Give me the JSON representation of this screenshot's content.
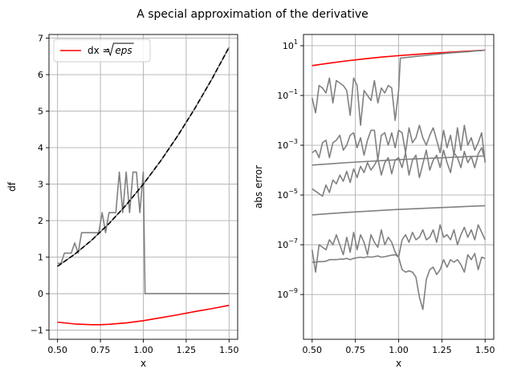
{
  "suptitle": "A special approximation of the derivative",
  "colors": {
    "red": "#ff0000",
    "gray": "#808080",
    "black": "#000000",
    "grid": "#b0b0b0"
  },
  "chart_data": [
    {
      "type": "line",
      "xlabel": "x",
      "ylabel": "df",
      "xlim": [
        0.45,
        1.55
      ],
      "ylim": [
        -1.25,
        7.1
      ],
      "xticks": [
        0.5,
        0.75,
        1.0,
        1.25,
        1.5
      ],
      "xtick_labels": [
        "0.50",
        "0.75",
        "1.00",
        "1.25",
        "1.50"
      ],
      "yticks": [
        -1,
        0,
        1,
        2,
        3,
        4,
        5,
        6,
        7
      ],
      "ytick_labels": [
        "−1",
        "0",
        "1",
        "2",
        "3",
        "4",
        "5",
        "6",
        "7"
      ],
      "grid": true,
      "legend": {
        "position": "upper-left",
        "label_prefix": "dx = ",
        "label_math": "eps"
      },
      "series": [
        {
          "name": "dx = √eps",
          "color": "#ff0000",
          "x": [
            0.5,
            0.6,
            0.7,
            0.75,
            0.8,
            0.9,
            1.0,
            1.1,
            1.2,
            1.3,
            1.4,
            1.5
          ],
          "y": [
            -0.78,
            -0.83,
            -0.85,
            -0.85,
            -0.84,
            -0.8,
            -0.74,
            -0.66,
            -0.58,
            -0.49,
            -0.41,
            -0.32
          ]
        },
        {
          "color": "#808080",
          "x": [
            0.5,
            0.52,
            0.54,
            0.56,
            0.58,
            0.6,
            0.62,
            0.64,
            0.66,
            0.68,
            0.7,
            0.72,
            0.74,
            0.76,
            0.78,
            0.8,
            0.82,
            0.84,
            0.86,
            0.88,
            0.9,
            0.92,
            0.94,
            0.96,
            0.98,
            1.0,
            1.01,
            1.1,
            1.2,
            1.3,
            1.4,
            1.5
          ],
          "y": [
            0.83,
            0.83,
            1.11,
            1.11,
            1.11,
            1.39,
            1.11,
            1.67,
            1.67,
            1.67,
            1.67,
            1.67,
            1.67,
            2.22,
            1.67,
            2.22,
            2.22,
            2.22,
            3.33,
            2.22,
            3.33,
            2.22,
            3.33,
            3.33,
            2.22,
            3.33,
            0.0,
            0.0,
            0.0,
            0.0,
            0.0,
            0.0
          ]
        },
        {
          "color": "#808080",
          "x": [
            0.5,
            0.6,
            0.7,
            0.8,
            0.9,
            1.0,
            1.1,
            1.2,
            1.3,
            1.4,
            1.5
          ],
          "y": [
            0.75,
            1.08,
            1.47,
            1.92,
            2.43,
            3.0,
            3.63,
            4.32,
            5.07,
            5.88,
            6.75
          ]
        },
        {
          "color": "#000000",
          "dashed": true,
          "x": [
            0.5,
            0.6,
            0.7,
            0.8,
            0.9,
            1.0,
            1.1,
            1.2,
            1.3,
            1.4,
            1.5
          ],
          "y": [
            0.75,
            1.08,
            1.47,
            1.92,
            2.43,
            3.0,
            3.63,
            4.32,
            5.07,
            5.88,
            6.75
          ]
        }
      ]
    },
    {
      "type": "line",
      "xlabel": "x",
      "ylabel": "abs error",
      "yscale": "log",
      "xlim": [
        0.45,
        1.55
      ],
      "ylim_log10": [
        -10.8,
        1.45
      ],
      "xticks": [
        0.5,
        0.75,
        1.0,
        1.25,
        1.5
      ],
      "xtick_labels": [
        "0.50",
        "0.75",
        "1.00",
        "1.25",
        "1.50"
      ],
      "yticks_log10": [
        1,
        -1,
        -3,
        -5,
        -7,
        -9
      ],
      "ytick_labels": [
        {
          "base": "10",
          "exp": "1"
        },
        {
          "base": "10",
          "exp": "−1"
        },
        {
          "base": "10",
          "exp": "−3"
        },
        {
          "base": "10",
          "exp": "−5"
        },
        {
          "base": "10",
          "exp": "−7"
        },
        {
          "base": "10",
          "exp": "−9"
        }
      ],
      "grid": true,
      "series": [
        {
          "color": "#ff0000",
          "x": [
            0.5,
            0.6,
            0.7,
            0.8,
            0.9,
            1.0,
            1.1,
            1.2,
            1.3,
            1.4,
            1.5
          ],
          "log10y": [
            0.2,
            0.3,
            0.39,
            0.47,
            0.54,
            0.6,
            0.65,
            0.7,
            0.74,
            0.78,
            0.82
          ]
        },
        {
          "color": "#808080",
          "x": [
            0.5,
            0.52,
            0.54,
            0.56,
            0.58,
            0.6,
            0.62,
            0.64,
            0.66,
            0.68,
            0.7,
            0.72,
            0.74,
            0.76,
            0.78,
            0.8,
            0.82,
            0.84,
            0.86,
            0.88,
            0.9,
            0.92,
            0.94,
            0.96,
            0.98,
            1.0,
            1.01,
            1.1,
            1.2,
            1.3,
            1.4,
            1.5
          ],
          "log10y": [
            -1.1,
            -1.7,
            -0.6,
            -0.7,
            -0.9,
            -0.3,
            -1.3,
            -0.4,
            -0.5,
            -0.6,
            -0.8,
            -1.8,
            -0.3,
            -0.6,
            -2.2,
            -0.8,
            -1.0,
            -1.2,
            -0.4,
            -1.3,
            -0.7,
            -0.9,
            -0.6,
            -0.7,
            -2.0,
            -0.8,
            0.5,
            0.57,
            0.64,
            0.71,
            0.76,
            0.82
          ]
        },
        {
          "color": "#808080",
          "x": [
            0.5,
            0.52,
            0.54,
            0.56,
            0.58,
            0.6,
            0.62,
            0.64,
            0.66,
            0.68,
            0.7,
            0.72,
            0.74,
            0.76,
            0.78,
            0.8,
            0.82,
            0.84,
            0.86,
            0.88,
            0.9,
            0.92,
            0.94,
            0.96,
            0.98,
            1.0,
            1.02,
            1.04,
            1.06,
            1.08,
            1.1,
            1.12,
            1.14,
            1.16,
            1.18,
            1.2,
            1.22,
            1.24,
            1.26,
            1.28,
            1.3,
            1.32,
            1.34,
            1.36,
            1.38,
            1.4,
            1.42,
            1.44,
            1.46,
            1.48,
            1.5
          ],
          "log10y": [
            -3.3,
            -3.2,
            -3.5,
            -2.9,
            -2.8,
            -3.5,
            -2.9,
            -2.8,
            -2.6,
            -3.2,
            -3.0,
            -2.6,
            -2.5,
            -3.1,
            -2.7,
            -3.4,
            -2.8,
            -2.4,
            -2.4,
            -3.6,
            -2.6,
            -2.5,
            -3.0,
            -2.5,
            -3.1,
            -2.4,
            -2.5,
            -3.3,
            -2.3,
            -2.9,
            -2.7,
            -2.2,
            -2.7,
            -3.0,
            -2.6,
            -2.3,
            -2.8,
            -3.3,
            -2.4,
            -3.1,
            -2.6,
            -3.4,
            -2.3,
            -3.2,
            -2.2,
            -3.0,
            -2.7,
            -3.2,
            -2.9,
            -2.5,
            -3.7
          ]
        },
        {
          "color": "#808080",
          "x": [
            0.5,
            0.6,
            0.7,
            0.8,
            0.9,
            1.0,
            1.1,
            1.2,
            1.3,
            1.4,
            1.5
          ],
          "log10y": [
            -3.8,
            -3.75,
            -3.7,
            -3.66,
            -3.62,
            -3.58,
            -3.55,
            -3.52,
            -3.49,
            -3.46,
            -3.43
          ]
        },
        {
          "color": "#808080",
          "x": [
            0.5,
            0.52,
            0.54,
            0.56,
            0.58,
            0.6,
            0.62,
            0.64,
            0.66,
            0.68,
            0.7,
            0.72,
            0.74,
            0.76,
            0.78,
            0.8,
            0.82,
            0.84,
            0.86,
            0.88,
            0.9,
            0.92,
            0.94,
            0.96,
            0.98,
            1.0,
            1.02,
            1.04,
            1.06,
            1.08,
            1.1,
            1.12,
            1.14,
            1.16,
            1.18,
            1.2,
            1.22,
            1.24,
            1.26,
            1.28,
            1.3,
            1.32,
            1.34,
            1.36,
            1.38,
            1.4,
            1.42,
            1.44,
            1.46,
            1.48,
            1.5
          ],
          "log10y": [
            -4.75,
            -4.85,
            -4.95,
            -5.05,
            -4.6,
            -4.9,
            -4.4,
            -4.55,
            -4.2,
            -4.45,
            -4.05,
            -4.5,
            -3.95,
            -4.3,
            -3.85,
            -4.1,
            -3.7,
            -4.0,
            -3.8,
            -3.55,
            -4.2,
            -3.7,
            -3.5,
            -4.15,
            -3.6,
            -3.5,
            -3.9,
            -3.3,
            -4.2,
            -3.6,
            -3.4,
            -4.3,
            -3.75,
            -3.2,
            -4.0,
            -3.6,
            -3.4,
            -3.9,
            -3.2,
            -3.7,
            -4.1,
            -3.3,
            -3.5,
            -3.9,
            -3.25,
            -3.7,
            -3.45,
            -3.9,
            -3.35,
            -3.1,
            -3.6
          ]
        },
        {
          "color": "#808080",
          "x": [
            0.5,
            0.6,
            0.7,
            0.8,
            0.9,
            1.0,
            1.1,
            1.2,
            1.3,
            1.4,
            1.5
          ],
          "log10y": [
            -5.8,
            -5.75,
            -5.7,
            -5.66,
            -5.62,
            -5.58,
            -5.55,
            -5.52,
            -5.49,
            -5.46,
            -5.43
          ]
        },
        {
          "color": "#808080",
          "x": [
            0.5,
            0.52,
            0.54,
            0.56,
            0.58,
            0.6,
            0.62,
            0.64,
            0.66,
            0.68,
            0.7,
            0.72,
            0.74,
            0.76,
            0.78,
            0.8,
            0.82,
            0.84,
            0.86,
            0.88,
            0.9,
            0.92,
            0.94,
            0.96,
            0.98,
            1.0,
            1.02,
            1.04,
            1.06,
            1.08,
            1.1,
            1.12,
            1.14,
            1.16,
            1.18,
            1.2,
            1.22,
            1.24,
            1.26,
            1.28,
            1.3,
            1.32,
            1.34,
            1.36,
            1.38,
            1.4,
            1.42,
            1.44,
            1.46,
            1.48,
            1.5
          ],
          "log10y": [
            -7.2,
            -8.1,
            -7.0,
            -7.1,
            -7.2,
            -6.8,
            -7.0,
            -6.6,
            -7.0,
            -7.4,
            -6.7,
            -7.3,
            -6.5,
            -7.2,
            -6.6,
            -6.9,
            -7.4,
            -6.6,
            -6.9,
            -7.1,
            -6.4,
            -7.0,
            -6.7,
            -6.9,
            -7.3,
            -7.5,
            -6.8,
            -6.6,
            -6.9,
            -6.5,
            -6.8,
            -6.7,
            -6.4,
            -6.8,
            -6.7,
            -6.4,
            -6.9,
            -6.2,
            -6.7,
            -6.6,
            -6.8,
            -6.4,
            -7.0,
            -6.6,
            -6.3,
            -6.7,
            -6.4,
            -6.8,
            -6.2,
            -6.5,
            -6.8
          ]
        },
        {
          "color": "#808080",
          "x": [
            0.5,
            0.52,
            0.54,
            0.56,
            0.58,
            0.6,
            0.62,
            0.64,
            0.66,
            0.68,
            0.7,
            0.72,
            0.74,
            0.76,
            0.78,
            0.8,
            0.82,
            0.84,
            0.86,
            0.88,
            0.9,
            0.92,
            0.94,
            0.96,
            0.98,
            1.0,
            1.02,
            1.04,
            1.06,
            1.08,
            1.1,
            1.12,
            1.14,
            1.16,
            1.18,
            1.2,
            1.22,
            1.24,
            1.26,
            1.28,
            1.3,
            1.32,
            1.34,
            1.36,
            1.38,
            1.4,
            1.42,
            1.44,
            1.46,
            1.48,
            1.5
          ],
          "log10y": [
            -7.7,
            -7.7,
            -7.68,
            -7.68,
            -7.66,
            -7.6,
            -7.6,
            -7.6,
            -7.58,
            -7.58,
            -7.55,
            -7.6,
            -7.55,
            -7.52,
            -7.5,
            -7.52,
            -7.48,
            -7.5,
            -7.48,
            -7.45,
            -7.5,
            -7.48,
            -7.45,
            -7.42,
            -7.4,
            -7.5,
            -8.0,
            -8.1,
            -8.05,
            -8.1,
            -8.3,
            -9.1,
            -9.6,
            -8.4,
            -8.0,
            -7.9,
            -8.2,
            -8.0,
            -7.6,
            -7.9,
            -7.6,
            -7.7,
            -7.6,
            -7.8,
            -8.1,
            -7.4,
            -7.6,
            -7.35,
            -8.0,
            -7.5,
            -7.55
          ]
        }
      ]
    }
  ]
}
